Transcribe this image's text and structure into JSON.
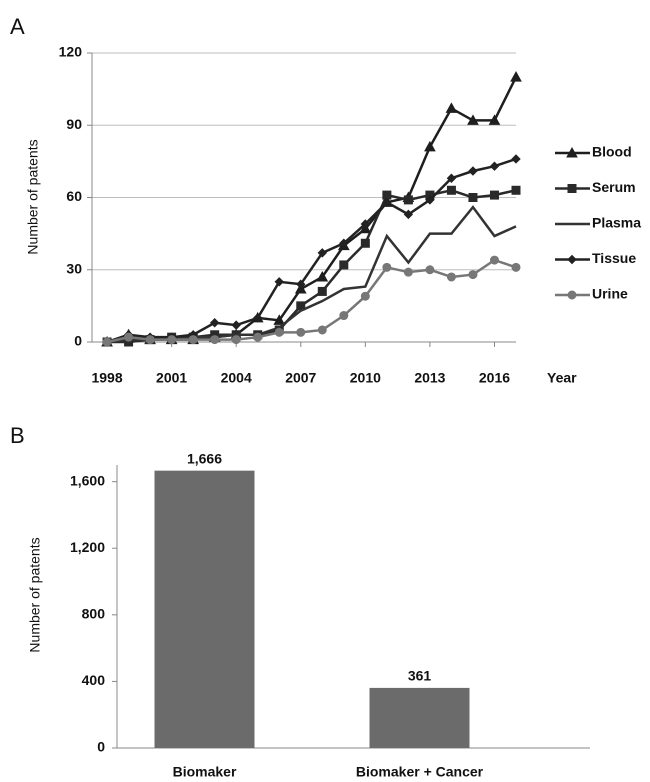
{
  "chart_data": [
    {
      "type": "line",
      "panel_label": "A",
      "y_label": "Number of patents",
      "x_label": "Year",
      "x": [
        1998,
        1999,
        2000,
        2001,
        2002,
        2003,
        2004,
        2005,
        2006,
        2007,
        2008,
        2009,
        2010,
        2011,
        2012,
        2013,
        2014,
        2015,
        2016,
        2017
      ],
      "xlim": [
        1997.3,
        2017
      ],
      "xticks": [
        1998,
        2001,
        2004,
        2007,
        2010,
        2013,
        2016
      ],
      "ylim": [
        0,
        120
      ],
      "yticks": [
        0,
        30,
        60,
        90,
        120
      ],
      "grid": true,
      "legend": "right",
      "series": [
        {
          "name": "Blood",
          "color": "#1e1e1e",
          "marker": "triangle",
          "values": [
            0,
            3,
            1,
            1,
            1,
            2,
            3,
            10,
            9,
            22,
            27,
            40,
            47,
            58,
            60,
            81,
            97,
            92,
            92,
            110
          ]
        },
        {
          "name": "Serum",
          "color": "#2a2a2a",
          "marker": "square",
          "values": [
            0,
            0,
            1,
            2,
            2,
            3,
            3,
            3,
            5,
            15,
            21,
            32,
            41,
            61,
            59,
            61,
            63,
            60,
            61,
            63
          ]
        },
        {
          "name": "Plasma",
          "color": "#333333",
          "marker": "none",
          "values": [
            0,
            1,
            1,
            2,
            2,
            2,
            3,
            3,
            6,
            13,
            17,
            22,
            23,
            44,
            33,
            45,
            45,
            56,
            44,
            48
          ]
        },
        {
          "name": "Tissue",
          "color": "#222222",
          "marker": "diamond",
          "values": [
            0,
            3,
            2,
            2,
            3,
            8,
            7,
            10,
            25,
            24,
            37,
            41,
            49,
            58,
            53,
            59,
            68,
            71,
            73,
            76
          ]
        },
        {
          "name": "Urine",
          "color": "#777777",
          "marker": "circle",
          "values": [
            0,
            2,
            1,
            1,
            1,
            1,
            1,
            2,
            4,
            4,
            5,
            11,
            19,
            31,
            29,
            30,
            27,
            28,
            34,
            31
          ]
        }
      ]
    },
    {
      "type": "bar",
      "panel_label": "B",
      "y_label": "Number of patents",
      "categories": [
        "Biomaker",
        "Biomaker + Cancer"
      ],
      "values": [
        1666,
        361
      ],
      "value_labels": [
        "1,666",
        "361"
      ],
      "color": "#6b6b6b",
      "ylim": [
        0,
        1700
      ],
      "yticks": [
        0,
        400,
        800,
        {
          "value": 1200,
          "label": "1,200"
        },
        {
          "value": 1600,
          "label": "1,600"
        }
      ],
      "grid": false
    }
  ]
}
